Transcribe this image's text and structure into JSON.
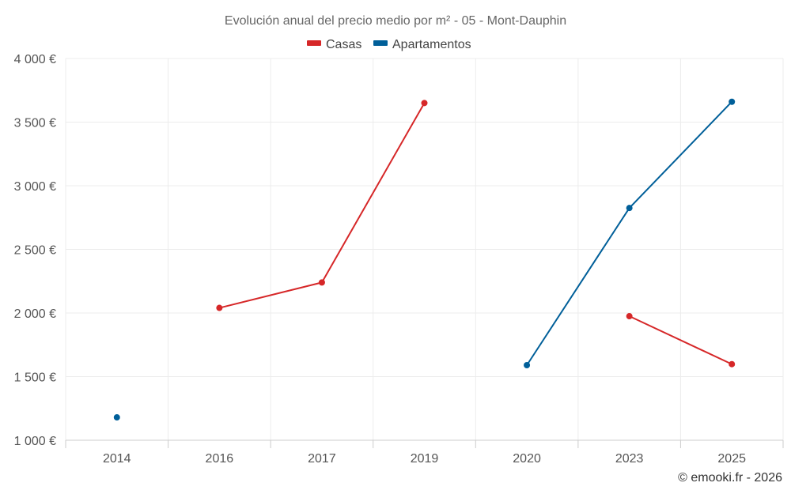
{
  "chart_data": {
    "type": "line",
    "title": "Evolución anual del precio medio por m² - 05 - Mont-Dauphin",
    "categories": [
      "2014",
      "2016",
      "2017",
      "2019",
      "2020",
      "2023",
      "2025"
    ],
    "ylim": [
      1000,
      4000
    ],
    "yticks": [
      1000,
      1500,
      2000,
      2500,
      3000,
      3500,
      4000
    ],
    "ytick_labels": [
      "1 000 €",
      "1 500 €",
      "2 000 €",
      "2 500 €",
      "3 000 €",
      "3 500 €",
      "4 000 €"
    ],
    "xlabel": "",
    "ylabel": "",
    "grid": true,
    "legend_position": "top-center",
    "series": [
      {
        "name": "Casas",
        "color": "#d62728",
        "values": [
          null,
          2040,
          2240,
          3650,
          null,
          1975,
          1598
        ]
      },
      {
        "name": "Apartamentos",
        "color": "#005f99",
        "values": [
          1180,
          null,
          null,
          null,
          1590,
          2825,
          3660
        ]
      }
    ],
    "credit": "© emooki.fr - 2026"
  }
}
